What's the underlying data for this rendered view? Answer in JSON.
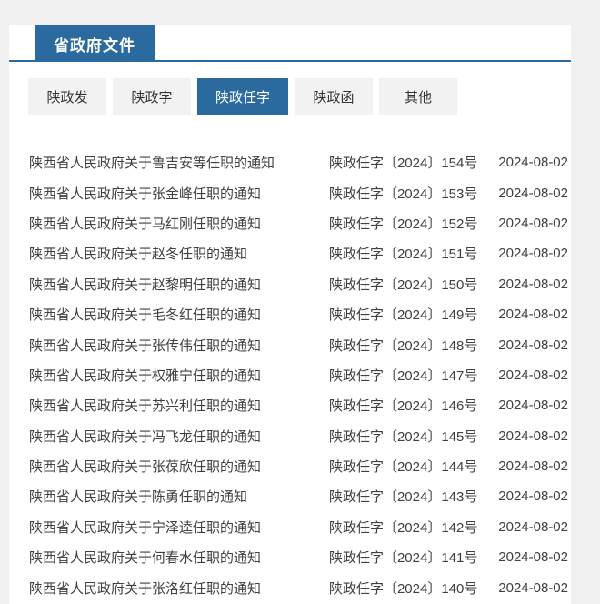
{
  "colors": {
    "accent": "#2b6a9e",
    "bg": "#f0f0f0",
    "panel": "#ffffff",
    "tabBg": "#f2f2f2",
    "text": "#404040"
  },
  "header": {
    "section_title": "省政府文件"
  },
  "tabs": [
    {
      "label": "陕政发",
      "active": false
    },
    {
      "label": "陕政字",
      "active": false
    },
    {
      "label": "陕政任字",
      "active": true
    },
    {
      "label": "陕政函",
      "active": false
    },
    {
      "label": "其他",
      "active": false
    }
  ],
  "documents": [
    {
      "title": "陕西省人民政府关于鲁吉安等任职的通知",
      "doc_number": "陕政任字〔2024〕154号",
      "date": "2024-08-02"
    },
    {
      "title": "陕西省人民政府关于张金峰任职的通知",
      "doc_number": "陕政任字〔2024〕153号",
      "date": "2024-08-02"
    },
    {
      "title": "陕西省人民政府关于马红刚任职的通知",
      "doc_number": "陕政任字〔2024〕152号",
      "date": "2024-08-02"
    },
    {
      "title": "陕西省人民政府关于赵冬任职的通知",
      "doc_number": "陕政任字〔2024〕151号",
      "date": "2024-08-02"
    },
    {
      "title": "陕西省人民政府关于赵黎明任职的通知",
      "doc_number": "陕政任字〔2024〕150号",
      "date": "2024-08-02"
    },
    {
      "title": "陕西省人民政府关于毛冬红任职的通知",
      "doc_number": "陕政任字〔2024〕149号",
      "date": "2024-08-02"
    },
    {
      "title": "陕西省人民政府关于张传伟任职的通知",
      "doc_number": "陕政任字〔2024〕148号",
      "date": "2024-08-02"
    },
    {
      "title": "陕西省人民政府关于权雅宁任职的通知",
      "doc_number": "陕政任字〔2024〕147号",
      "date": "2024-08-02"
    },
    {
      "title": "陕西省人民政府关于苏兴利任职的通知",
      "doc_number": "陕政任字〔2024〕146号",
      "date": "2024-08-02"
    },
    {
      "title": "陕西省人民政府关于冯飞龙任职的通知",
      "doc_number": "陕政任字〔2024〕145号",
      "date": "2024-08-02"
    },
    {
      "title": "陕西省人民政府关于张葆欣任职的通知",
      "doc_number": "陕政任字〔2024〕144号",
      "date": "2024-08-02"
    },
    {
      "title": "陕西省人民政府关于陈勇任职的通知",
      "doc_number": "陕政任字〔2024〕143号",
      "date": "2024-08-02"
    },
    {
      "title": "陕西省人民政府关于宁泽逵任职的通知",
      "doc_number": "陕政任字〔2024〕142号",
      "date": "2024-08-02"
    },
    {
      "title": "陕西省人民政府关于何春水任职的通知",
      "doc_number": "陕政任字〔2024〕141号",
      "date": "2024-08-02"
    },
    {
      "title": "陕西省人民政府关于张洛红任职的通知",
      "doc_number": "陕政任字〔2024〕140号",
      "date": "2024-08-02"
    }
  ]
}
